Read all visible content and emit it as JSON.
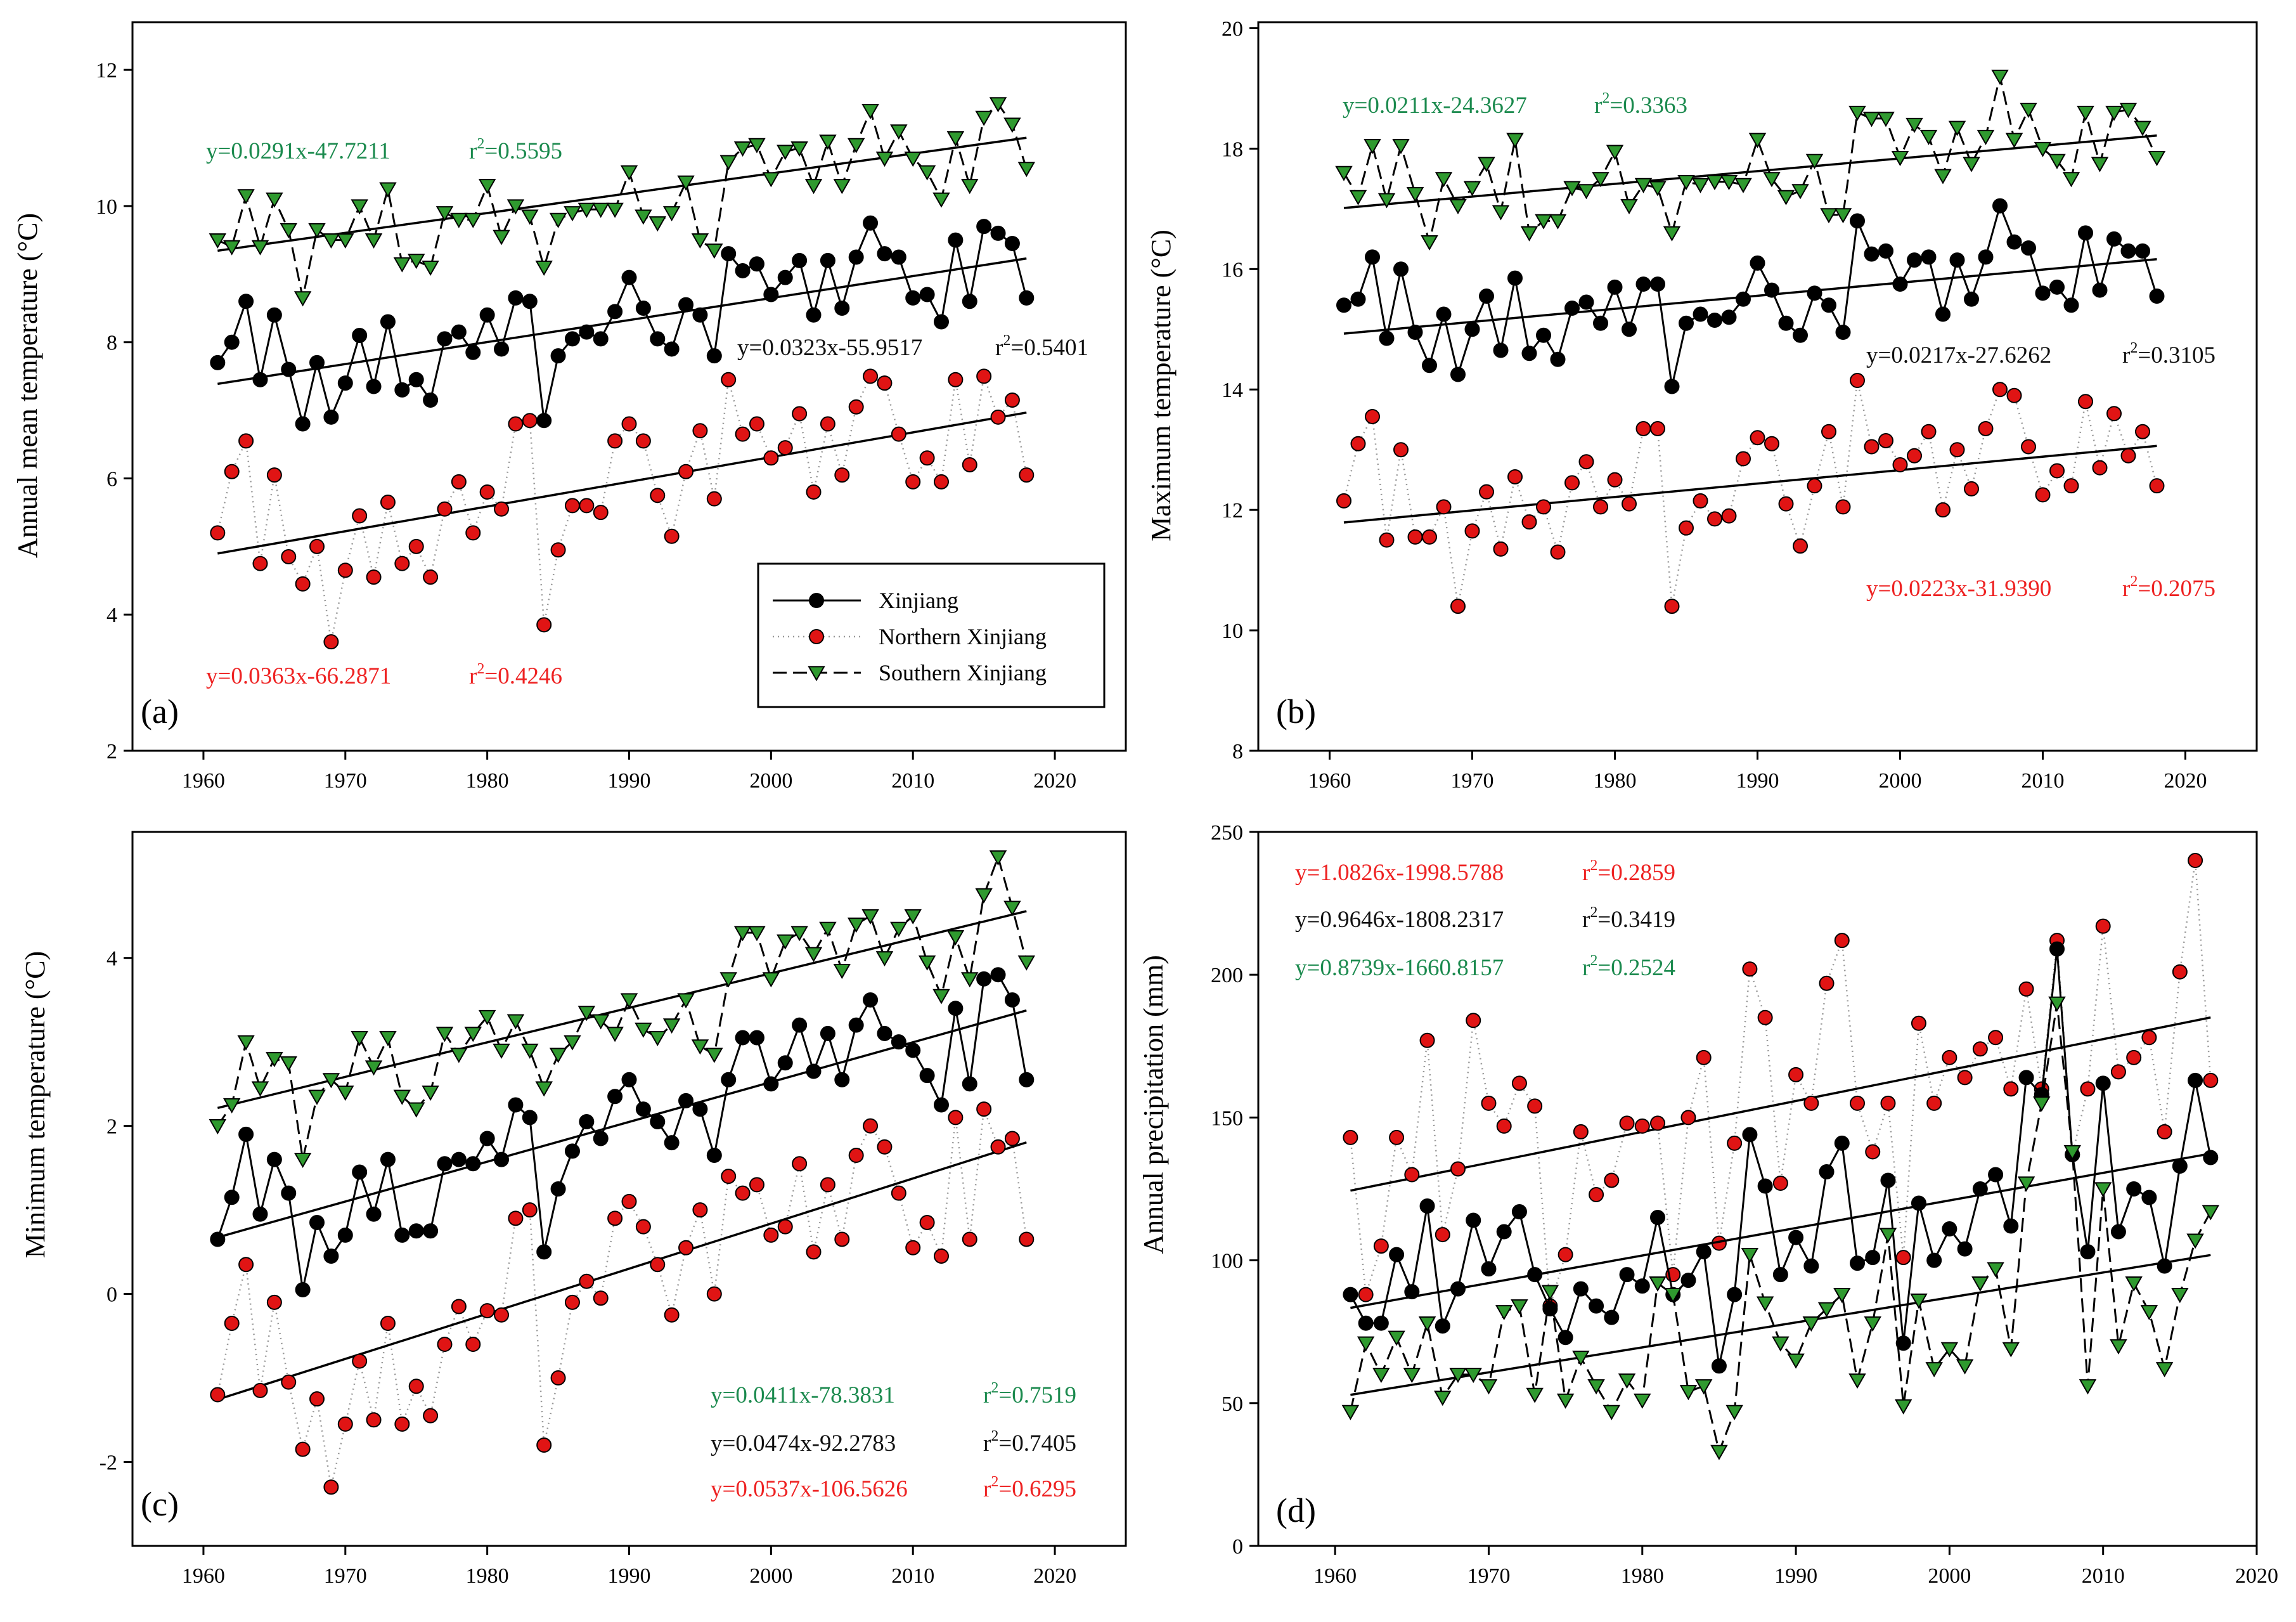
{
  "legend": {
    "entries": [
      "Xinjiang",
      "Northern Xinjiang",
      "Southern Xinjiang"
    ]
  },
  "colors": {
    "xinjiang": "#000000",
    "northern": "#e01414",
    "southern": "#2f9a2f",
    "eq_green": "#1b8a4e",
    "eq_red": "#ee2222",
    "eq_black": "#111111"
  },
  "chart_data": [
    {
      "type": "line",
      "label": "(a)",
      "ylabel": "Annual  mean  temperature (°C)",
      "xlim": [
        1955,
        2025
      ],
      "ylim": [
        2,
        12.7
      ],
      "xticks": [
        1960,
        1970,
        1980,
        1990,
        2000,
        2010,
        2020
      ],
      "yticks": [
        2,
        4,
        6,
        8,
        10,
        12
      ],
      "x_start": 1961,
      "legend": true,
      "series": [
        {
          "name": "Xinjiang",
          "key": "xinjiang",
          "slope": 0.0323,
          "intercept": -55.9517,
          "equation": "y=0.0323x-55.9517",
          "r2": "=0.5401",
          "values": [
            7.7,
            8.0,
            8.6,
            7.45,
            8.4,
            7.6,
            6.8,
            7.7,
            6.9,
            7.4,
            8.1,
            7.35,
            8.3,
            7.3,
            7.45,
            7.15,
            8.05,
            8.15,
            7.85,
            8.4,
            7.9,
            8.65,
            8.6,
            6.85,
            7.8,
            8.05,
            8.15,
            8.05,
            8.45,
            8.95,
            8.5,
            8.05,
            7.9,
            8.55,
            8.4,
            7.8,
            9.3,
            9.05,
            9.15,
            8.7,
            8.95,
            9.2,
            8.4,
            9.2,
            8.5,
            9.25,
            9.75,
            9.3,
            9.25,
            8.65,
            8.7,
            8.3,
            9.5,
            8.6,
            9.7,
            9.6,
            9.45,
            8.65
          ]
        },
        {
          "name": "Northern Xinjiang",
          "key": "northern",
          "slope": 0.0363,
          "intercept": -66.2871,
          "equation": "y=0.0363x-66.2871",
          "r2": "=0.4246",
          "values": [
            5.2,
            6.1,
            6.55,
            4.75,
            6.05,
            4.85,
            4.45,
            5.0,
            3.6,
            4.65,
            5.45,
            4.55,
            5.65,
            4.75,
            5.0,
            4.55,
            5.55,
            5.95,
            5.2,
            5.8,
            5.55,
            6.8,
            6.85,
            3.85,
            4.95,
            5.6,
            5.6,
            5.5,
            6.55,
            6.8,
            6.55,
            5.75,
            5.15,
            6.1,
            6.7,
            5.7,
            7.45,
            6.65,
            6.8,
            6.3,
            6.45,
            6.95,
            5.8,
            6.8,
            6.05,
            7.05,
            7.5,
            7.4,
            6.65,
            5.95,
            6.3,
            5.95,
            7.45,
            6.2,
            7.5,
            6.9,
            7.15,
            6.05
          ]
        },
        {
          "name": "Southern Xinjiang",
          "key": "southern",
          "slope": 0.0291,
          "intercept": -47.7211,
          "equation": "y=0.0291x-47.7211",
          "r2": "=0.5595",
          "values": [
            9.5,
            9.4,
            10.15,
            9.4,
            10.1,
            9.65,
            8.65,
            9.65,
            9.5,
            9.5,
            10.0,
            9.5,
            10.25,
            9.15,
            9.2,
            9.1,
            9.9,
            9.8,
            9.8,
            10.3,
            9.55,
            10.0,
            9.85,
            9.1,
            9.8,
            9.9,
            9.95,
            9.95,
            9.95,
            10.5,
            9.85,
            9.75,
            9.9,
            10.35,
            9.5,
            9.35,
            10.65,
            10.85,
            10.9,
            10.4,
            10.8,
            10.85,
            10.3,
            10.95,
            10.3,
            10.9,
            11.4,
            10.7,
            11.1,
            10.7,
            10.5,
            10.1,
            11.0,
            10.3,
            11.3,
            11.5,
            11.2,
            10.55
          ]
        }
      ]
    },
    {
      "type": "line",
      "label": "(b)",
      "ylabel": "Maximum temperature (°C)",
      "xlim": [
        1955,
        2025
      ],
      "ylim": [
        8,
        20.1
      ],
      "xticks": [
        1960,
        1970,
        1980,
        1990,
        2000,
        2010,
        2020
      ],
      "yticks": [
        8,
        10,
        12,
        14,
        16,
        18,
        20
      ],
      "x_start": 1961,
      "legend": false,
      "series": [
        {
          "name": "Xinjiang",
          "key": "xinjiang",
          "slope": 0.0217,
          "intercept": -27.6262,
          "equation": "y=0.0217x-27.6262",
          "r2": "=0.3105",
          "values": [
            15.4,
            15.5,
            16.2,
            14.85,
            16.0,
            14.95,
            14.4,
            15.25,
            14.25,
            15.0,
            15.55,
            14.65,
            15.85,
            14.6,
            14.9,
            14.5,
            15.35,
            15.45,
            15.1,
            15.7,
            15.0,
            15.75,
            15.75,
            14.05,
            15.1,
            15.25,
            15.15,
            15.2,
            15.5,
            16.1,
            15.65,
            15.1,
            14.9,
            15.6,
            15.4,
            14.95,
            16.8,
            16.25,
            16.3,
            15.75,
            16.15,
            16.2,
            15.25,
            16.15,
            15.5,
            16.2,
            17.05,
            16.45,
            16.35,
            15.6,
            15.7,
            15.4,
            16.6,
            15.65,
            16.5,
            16.3,
            16.3,
            15.55
          ]
        },
        {
          "name": "Northern Xinjiang",
          "key": "northern",
          "slope": 0.0223,
          "intercept": -31.939,
          "equation": "y=0.0223x-31.9390",
          "r2": "=0.2075",
          "values": [
            12.15,
            13.1,
            13.55,
            11.5,
            13.0,
            11.55,
            11.55,
            12.05,
            10.4,
            11.65,
            12.3,
            11.35,
            12.55,
            11.8,
            12.05,
            11.3,
            12.45,
            12.8,
            12.05,
            12.5,
            12.1,
            13.35,
            13.35,
            10.4,
            11.7,
            12.15,
            11.85,
            11.9,
            12.85,
            13.2,
            13.1,
            12.1,
            11.4,
            12.4,
            13.3,
            12.05,
            14.15,
            13.05,
            13.15,
            12.75,
            12.9,
            13.3,
            12.0,
            13.0,
            12.35,
            13.35,
            14.0,
            13.9,
            13.05,
            12.25,
            12.65,
            12.4,
            13.8,
            12.7,
            13.6,
            12.9,
            13.3,
            12.4
          ]
        },
        {
          "name": "Southern Xinjiang",
          "key": "southern",
          "slope": 0.0211,
          "intercept": -24.3627,
          "equation": "y=0.0211x-24.3627",
          "r2": "=0.3363",
          "values": [
            17.6,
            17.2,
            18.05,
            17.15,
            18.05,
            17.25,
            16.45,
            17.5,
            17.05,
            17.35,
            17.75,
            16.95,
            18.15,
            16.6,
            16.8,
            16.8,
            17.35,
            17.3,
            17.5,
            17.95,
            17.05,
            17.4,
            17.35,
            16.6,
            17.45,
            17.4,
            17.45,
            17.45,
            17.4,
            18.15,
            17.5,
            17.2,
            17.3,
            17.8,
            16.9,
            16.9,
            18.6,
            18.5,
            18.5,
            17.85,
            18.4,
            18.2,
            17.55,
            18.35,
            17.75,
            18.2,
            19.2,
            18.15,
            18.65,
            18.0,
            17.8,
            17.5,
            18.6,
            17.75,
            18.6,
            18.65,
            18.35,
            17.85
          ]
        }
      ]
    },
    {
      "type": "line",
      "label": "(c)",
      "ylabel": "Minimum temperature (°C)",
      "xlim": [
        1955,
        2025
      ],
      "ylim": [
        -3,
        5.5
      ],
      "xticks": [
        1960,
        1970,
        1980,
        1990,
        2000,
        2010,
        2020
      ],
      "yticks": [
        -2,
        0,
        2,
        4
      ],
      "x_start": 1961,
      "legend": false,
      "series": [
        {
          "name": "Xinjiang",
          "key": "xinjiang",
          "slope": 0.0474,
          "intercept": -92.2783,
          "equation": "y=0.0474x-92.2783",
          "r2": "=0.7405",
          "values": [
            0.65,
            1.15,
            1.9,
            0.95,
            1.6,
            1.2,
            0.05,
            0.85,
            0.45,
            0.7,
            1.45,
            0.95,
            1.6,
            0.7,
            0.75,
            0.75,
            1.55,
            1.6,
            1.55,
            1.85,
            1.6,
            2.25,
            2.1,
            0.5,
            1.25,
            1.7,
            2.05,
            1.85,
            2.35,
            2.55,
            2.2,
            2.05,
            1.8,
            2.3,
            2.2,
            1.65,
            2.55,
            3.05,
            3.05,
            2.5,
            2.75,
            3.2,
            2.65,
            3.1,
            2.55,
            3.2,
            3.5,
            3.1,
            3.0,
            2.9,
            2.6,
            2.25,
            3.4,
            2.5,
            3.75,
            3.8,
            3.5,
            2.55
          ]
        },
        {
          "name": "Northern Xinjiang",
          "key": "northern",
          "slope": 0.0537,
          "intercept": -106.5626,
          "equation": "y=0.0537x-106.5626",
          "r2": "=0.6295",
          "values": [
            -1.2,
            -0.35,
            0.35,
            -1.15,
            -0.1,
            -1.05,
            -1.85,
            -1.25,
            -2.3,
            -1.55,
            -0.8,
            -1.5,
            -0.35,
            -1.55,
            -1.1,
            -1.45,
            -0.6,
            -0.15,
            -0.6,
            -0.2,
            -0.25,
            0.9,
            1.0,
            -1.8,
            -1.0,
            -0.1,
            0.15,
            -0.05,
            0.9,
            1.1,
            0.8,
            0.35,
            -0.25,
            0.55,
            1.0,
            0.0,
            1.4,
            1.2,
            1.3,
            0.7,
            0.8,
            1.55,
            0.5,
            1.3,
            0.65,
            1.65,
            2.0,
            1.75,
            1.2,
            0.55,
            0.85,
            0.45,
            2.1,
            0.65,
            2.2,
            1.75,
            1.85,
            0.65
          ]
        },
        {
          "name": "Southern Xinjiang",
          "key": "southern",
          "slope": 0.0411,
          "intercept": -78.3831,
          "equation": "y=0.0411x-78.3831",
          "r2": "=0.7519",
          "values": [
            2.0,
            2.25,
            3.0,
            2.45,
            2.8,
            2.75,
            1.6,
            2.35,
            2.55,
            2.4,
            3.05,
            2.7,
            3.05,
            2.35,
            2.2,
            2.4,
            3.1,
            2.85,
            3.1,
            3.3,
            2.9,
            3.25,
            2.9,
            2.45,
            2.85,
            3.0,
            3.35,
            3.25,
            3.1,
            3.5,
            3.15,
            3.05,
            3.2,
            3.5,
            2.95,
            2.85,
            3.75,
            4.3,
            4.3,
            3.75,
            4.2,
            4.3,
            4.05,
            4.35,
            3.85,
            4.4,
            4.5,
            4.0,
            4.35,
            4.5,
            3.95,
            3.55,
            4.25,
            3.75,
            4.75,
            5.2,
            4.6,
            3.95
          ]
        }
      ]
    },
    {
      "type": "line",
      "label": "(d)",
      "ylabel": "Annual precipitation (mm)",
      "xlim": [
        1955,
        2020
      ],
      "ylim": [
        0,
        250
      ],
      "xticks": [
        1960,
        1970,
        1980,
        1990,
        2000,
        2010,
        2020
      ],
      "yticks": [
        0,
        50,
        100,
        150,
        200,
        250
      ],
      "x_start": 1961,
      "legend": false,
      "series": [
        {
          "name": "Xinjiang",
          "key": "xinjiang",
          "slope": 0.9646,
          "intercept": -1808.2317,
          "equation": "y=0.9646x-1808.2317",
          "r2": "=0.3419",
          "values": [
            88,
            78,
            78,
            102,
            89,
            119,
            77,
            90,
            114,
            97,
            110,
            117,
            95,
            83,
            73,
            90,
            84,
            80,
            95,
            91,
            115,
            88,
            93,
            103,
            63,
            88,
            144,
            126,
            95,
            108,
            98,
            131,
            141,
            99,
            101,
            128,
            71,
            120,
            100,
            111,
            104,
            125,
            130,
            112,
            164,
            158,
            209,
            137,
            103,
            162,
            110,
            125,
            122,
            98,
            133,
            163,
            136
          ]
        },
        {
          "name": "Northern Xinjiang",
          "key": "northern",
          "slope": 1.0826,
          "intercept": -1998.5788,
          "equation": "y=1.0826x-1998.5788",
          "r2": "=0.2859",
          "values": [
            143,
            88,
            105,
            143,
            130,
            177,
            109,
            132,
            184,
            155,
            147,
            162,
            154,
            84,
            102,
            145,
            123,
            128,
            148,
            147,
            148,
            95,
            150,
            171,
            106,
            141,
            202,
            185,
            127,
            165,
            155,
            197,
            212,
            155,
            138,
            155,
            101,
            183,
            155,
            171,
            164,
            174,
            178,
            160,
            195,
            160,
            212,
            137,
            160,
            217,
            166,
            171,
            178,
            145,
            201,
            240,
            163
          ]
        },
        {
          "name": "Southern Xinjiang",
          "key": "southern",
          "slope": 0.8739,
          "intercept": -1660.8157,
          "equation": "y=0.8739x-1660.8157",
          "r2": "=0.2524",
          "values": [
            47,
            71,
            60,
            73,
            60,
            78,
            52,
            60,
            60,
            56,
            82,
            84,
            53,
            89,
            51,
            66,
            56,
            47,
            58,
            51,
            92,
            88,
            54,
            56,
            33,
            47,
            102,
            85,
            71,
            65,
            78,
            83,
            88,
            58,
            78,
            109,
            49,
            86,
            62,
            69,
            63,
            92,
            97,
            69,
            127,
            155,
            190,
            138,
            56,
            125,
            70,
            92,
            82,
            62,
            88,
            107,
            117
          ]
        }
      ]
    }
  ]
}
